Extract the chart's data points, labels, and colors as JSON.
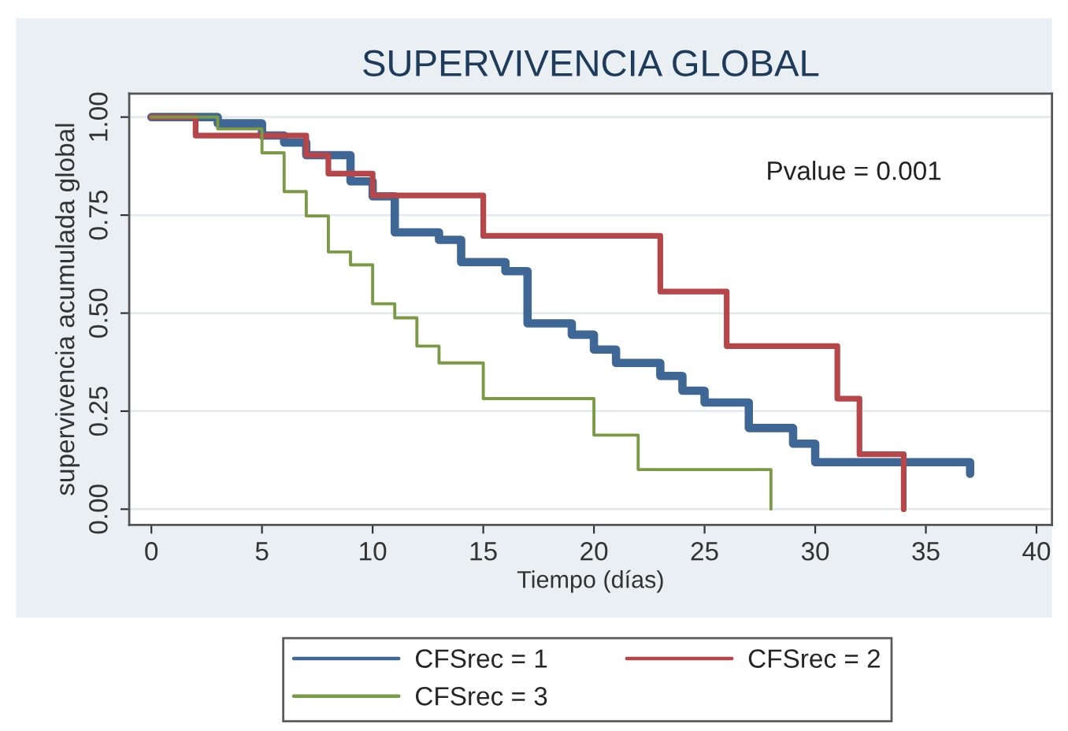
{
  "chart_data": {
    "type": "step",
    "title": "SUPERVIVENCIA GLOBAL",
    "xlabel": "Tiempo (días)",
    "ylabel": "supervivencia acumulada global",
    "annotations": [
      "Pvalue = 0.001"
    ],
    "xlim": [
      -1,
      40.7
    ],
    "xticks": [
      0,
      5,
      10,
      15,
      20,
      25,
      30,
      35,
      40
    ],
    "ylim": [
      -0.04,
      1.06
    ],
    "yticks": [
      {
        "value": 0,
        "label": "0.00"
      },
      {
        "value": 0.25,
        "label": "0.25"
      },
      {
        "value": 0.5,
        "label": "0.50"
      },
      {
        "value": 0.75,
        "label": "0.75"
      },
      {
        "value": 1,
        "label": "1.00"
      }
    ],
    "grid": "y",
    "legend": "bottom",
    "marker": "none",
    "line_style": "solid",
    "series": [
      {
        "name": "CFSrec = 1",
        "color": "#3f6796",
        "x": [
          0,
          3,
          5,
          6,
          7,
          9,
          10,
          11,
          13,
          14,
          16,
          17,
          19,
          20,
          21,
          23,
          24,
          25,
          27,
          29,
          30,
          37
        ],
        "values": [
          1,
          0.984,
          0.953,
          0.935,
          0.903,
          0.836,
          0.798,
          0.706,
          0.687,
          0.63,
          0.607,
          0.474,
          0.445,
          0.407,
          0.373,
          0.34,
          0.302,
          0.272,
          0.207,
          0.167,
          0.12,
          0.09
        ]
      },
      {
        "name": "CFSrec = 2",
        "color": "#b5474b",
        "x": [
          0,
          2,
          7,
          8,
          10,
          15,
          23,
          26,
          31,
          32,
          34
        ],
        "values": [
          1,
          0.953,
          0.903,
          0.856,
          0.8,
          0.697,
          0.555,
          0.416,
          0.282,
          0.14,
          0
        ]
      },
      {
        "name": "CFSrec = 3",
        "color": "#7a9a45",
        "x": [
          0,
          3,
          5,
          6,
          7,
          8,
          9,
          10,
          11,
          12,
          13,
          15,
          20,
          22,
          28
        ],
        "values": [
          1,
          0.97,
          0.909,
          0.81,
          0.748,
          0.656,
          0.623,
          0.524,
          0.488,
          0.416,
          0.373,
          0.282,
          0.189,
          0.101,
          0
        ]
      }
    ]
  }
}
